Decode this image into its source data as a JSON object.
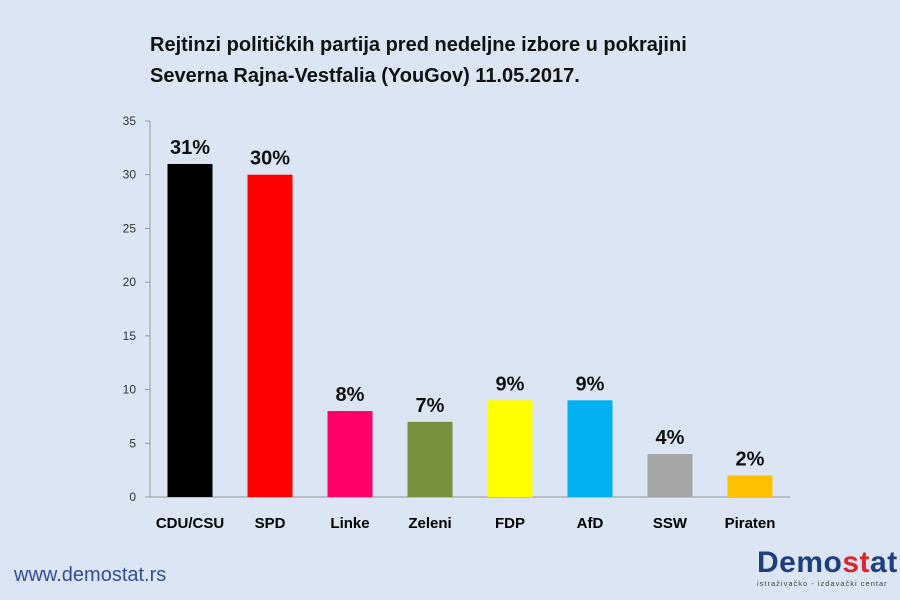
{
  "title_lines": [
    "Rejtinzi političkih partija pred nedeljne izbore u pokrajini",
    "Severna Rajna-Vestfalia (YouGov) 11.05.2017."
  ],
  "chart_data": {
    "type": "bar",
    "title": "Rejtinzi političkih partija pred nedeljne izbore u pokrajini Severna Rajna-Vestfalia (YouGov) 11.05.2017.",
    "categories": [
      "CDU/CSU",
      "SPD",
      "Linke",
      "Zeleni",
      "FDP",
      "AfD",
      "SSW",
      "Piraten"
    ],
    "values": [
      31,
      30,
      8,
      7,
      9,
      9,
      4,
      2
    ],
    "data_labels": [
      "31%",
      "30%",
      "8%",
      "7%",
      "9%",
      "9%",
      "4%",
      "2%"
    ],
    "colors": [
      "#000000",
      "#ff0000",
      "#ff0066",
      "#76923c",
      "#ffff00",
      "#00b0f0",
      "#a6a6a6",
      "#ffc000"
    ],
    "ylim": [
      0,
      35
    ],
    "yticks": [
      0,
      5,
      10,
      15,
      20,
      25,
      30,
      35
    ],
    "xlabel": "",
    "ylabel": "",
    "grid": false,
    "legend": "none"
  },
  "footer": {
    "website": "www.demostat.rs",
    "logo_text_main": "Demo",
    "logo_text_accent": "st",
    "logo_text_end": "at",
    "logo_tagline": "istraživačko - izdavački centar"
  }
}
